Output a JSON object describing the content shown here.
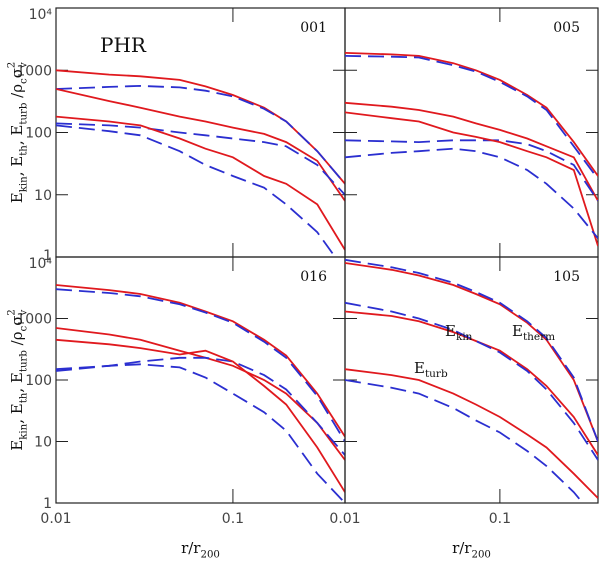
{
  "chart_data": [
    {
      "type": "line",
      "title": "001",
      "annotations": [
        {
          "text": "PHR"
        }
      ],
      "ylabel": [
        {
          "text": "E",
          "sub": "kin"
        },
        {
          "text": ",  E",
          "sub": "th"
        },
        {
          "text": ",  E",
          "sub": "turb"
        },
        {
          "text": "  /ρ",
          "sub": "c"
        },
        {
          "text": "σ",
          "sub": "v",
          "sup": "2"
        }
      ],
      "xlog": true,
      "ylog": true,
      "xlim": [
        0.01,
        0.43
      ],
      "ylim": [
        1,
        10000
      ],
      "xticks": [
        0.01,
        0.1
      ],
      "yticks": [
        1,
        10,
        100,
        1000,
        {
          "value": 10000,
          "label": "10⁴"
        }
      ],
      "x": [
        0.01,
        0.02,
        0.03,
        0.05,
        0.07,
        0.1,
        0.15,
        0.2,
        0.3,
        0.43
      ],
      "series": [
        {
          "color": "#e0191e",
          "dashed": false,
          "values": [
            1000,
            850,
            800,
            700,
            550,
            400,
            250,
            150,
            50,
            15
          ]
        },
        {
          "color": "#2b2fd0",
          "dashed": true,
          "values": [
            500,
            540,
            560,
            530,
            470,
            380,
            240,
            150,
            50,
            15
          ]
        },
        {
          "color": "#e0191e",
          "dashed": false,
          "values": [
            500,
            320,
            250,
            180,
            150,
            120,
            95,
            70,
            35,
            8
          ]
        },
        {
          "color": "#2b2fd0",
          "dashed": true,
          "values": [
            140,
            130,
            120,
            100,
            90,
            80,
            70,
            60,
            30,
            10
          ]
        },
        {
          "color": "#e0191e",
          "dashed": false,
          "values": [
            180,
            150,
            130,
            80,
            55,
            40,
            20,
            15,
            7,
            1.3
          ]
        },
        {
          "color": "#2b2fd0",
          "dashed": true,
          "values": [
            130,
            105,
            90,
            50,
            30,
            20,
            13,
            7,
            2.5,
            0.6
          ]
        }
      ]
    },
    {
      "type": "line",
      "title": "005",
      "annotations": [],
      "xlog": true,
      "ylog": true,
      "xlim": [
        0.01,
        0.43
      ],
      "ylim": [
        1,
        10000
      ],
      "xticks": [
        0.01,
        0.1
      ],
      "yticks": [
        1,
        10,
        100,
        1000,
        10000
      ],
      "x": [
        0.01,
        0.02,
        0.03,
        0.05,
        0.07,
        0.1,
        0.15,
        0.2,
        0.3,
        0.43
      ],
      "series": [
        {
          "color": "#e0191e",
          "dashed": false,
          "values": [
            1900,
            1800,
            1700,
            1300,
            1000,
            700,
            400,
            250,
            70,
            20
          ]
        },
        {
          "color": "#2b2fd0",
          "dashed": true,
          "values": [
            1700,
            1650,
            1600,
            1200,
            950,
            650,
            380,
            230,
            60,
            18
          ]
        },
        {
          "color": "#e0191e",
          "dashed": false,
          "values": [
            300,
            260,
            230,
            180,
            140,
            110,
            80,
            60,
            40,
            8
          ]
        },
        {
          "color": "#2b2fd0",
          "dashed": true,
          "values": [
            75,
            72,
            70,
            75,
            75,
            75,
            65,
            50,
            30,
            8
          ]
        },
        {
          "color": "#e0191e",
          "dashed": false,
          "values": [
            210,
            170,
            150,
            100,
            85,
            70,
            50,
            40,
            25,
            1.5
          ]
        },
        {
          "color": "#2b2fd0",
          "dashed": true,
          "values": [
            40,
            47,
            50,
            55,
            50,
            40,
            25,
            15,
            6,
            2
          ]
        }
      ]
    },
    {
      "type": "line",
      "title": "016",
      "annotations": [],
      "ylabel": [
        {
          "text": "E",
          "sub": "kin"
        },
        {
          "text": ",  E",
          "sub": "th"
        },
        {
          "text": ",  E",
          "sub": "turb"
        },
        {
          "text": "  /ρ",
          "sub": "c"
        },
        {
          "text": "σ",
          "sub": "v",
          "sup": "2"
        }
      ],
      "xlabel": [
        {
          "text": "r/r",
          "sub": "200"
        }
      ],
      "xlog": true,
      "ylog": true,
      "xlim": [
        0.01,
        0.43
      ],
      "ylim": [
        1,
        10000
      ],
      "xticks": [
        0.01,
        0.1
      ],
      "yticks": [
        1,
        10,
        100,
        1000,
        {
          "value": 10000,
          "label": "10⁴"
        }
      ],
      "x": [
        0.01,
        0.02,
        0.03,
        0.05,
        0.07,
        0.1,
        0.15,
        0.2,
        0.3,
        0.43
      ],
      "series": [
        {
          "color": "#e0191e",
          "dashed": false,
          "values": [
            3500,
            2900,
            2500,
            1800,
            1300,
            900,
            450,
            250,
            60,
            12
          ]
        },
        {
          "color": "#2b2fd0",
          "dashed": true,
          "values": [
            3000,
            2600,
            2300,
            1700,
            1250,
            850,
            420,
            230,
            55,
            10
          ]
        },
        {
          "color": "#e0191e",
          "dashed": false,
          "values": [
            700,
            550,
            450,
            300,
            230,
            170,
            100,
            60,
            20,
            5
          ]
        },
        {
          "color": "#2b2fd0",
          "dashed": true,
          "values": [
            140,
            170,
            200,
            230,
            230,
            200,
            120,
            70,
            20,
            6
          ]
        },
        {
          "color": "#e0191e",
          "dashed": false,
          "values": [
            450,
            380,
            330,
            260,
            300,
            200,
            80,
            40,
            8,
            1.5
          ]
        },
        {
          "color": "#2b2fd0",
          "dashed": true,
          "values": [
            150,
            170,
            180,
            160,
            110,
            60,
            30,
            15,
            3,
            1
          ]
        }
      ]
    },
    {
      "type": "line",
      "title": "105",
      "annotations": [
        {
          "text": "E",
          "sub": "kin"
        },
        {
          "text": "E",
          "sub": "therm"
        },
        {
          "text": "E",
          "sub": "turb"
        }
      ],
      "xlabel": [
        {
          "text": "r/r",
          "sub": "200"
        }
      ],
      "xlog": true,
      "ylog": true,
      "xlim": [
        0.01,
        0.43
      ],
      "ylim": [
        1,
        10000
      ],
      "xticks": [
        0.01,
        0.1
      ],
      "yticks": [
        1,
        10,
        100,
        1000,
        10000
      ],
      "x": [
        0.01,
        0.02,
        0.03,
        0.05,
        0.07,
        0.1,
        0.15,
        0.2,
        0.3,
        0.43
      ],
      "series": [
        {
          "color": "#e0191e",
          "dashed": false,
          "values": [
            8000,
            6200,
            5000,
            3500,
            2500,
            1700,
            850,
            450,
            100,
            10
          ]
        },
        {
          "color": "#2b2fd0",
          "dashed": true,
          "values": [
            9000,
            6800,
            5500,
            3800,
            2700,
            1800,
            900,
            480,
            110,
            10
          ]
        },
        {
          "color": "#e0191e",
          "dashed": false,
          "values": [
            1300,
            1100,
            900,
            600,
            430,
            300,
            150,
            80,
            25,
            6
          ]
        },
        {
          "color": "#2b2fd0",
          "dashed": true,
          "values": [
            1800,
            1300,
            1000,
            650,
            430,
            280,
            140,
            70,
            20,
            5
          ]
        },
        {
          "color": "#e0191e",
          "dashed": false,
          "values": [
            150,
            120,
            100,
            60,
            40,
            25,
            13,
            8,
            3,
            1.2
          ]
        },
        {
          "color": "#2b2fd0",
          "dashed": true,
          "values": [
            100,
            75,
            60,
            35,
            22,
            14,
            7,
            4,
            1.5,
            0.5
          ]
        }
      ]
    }
  ]
}
